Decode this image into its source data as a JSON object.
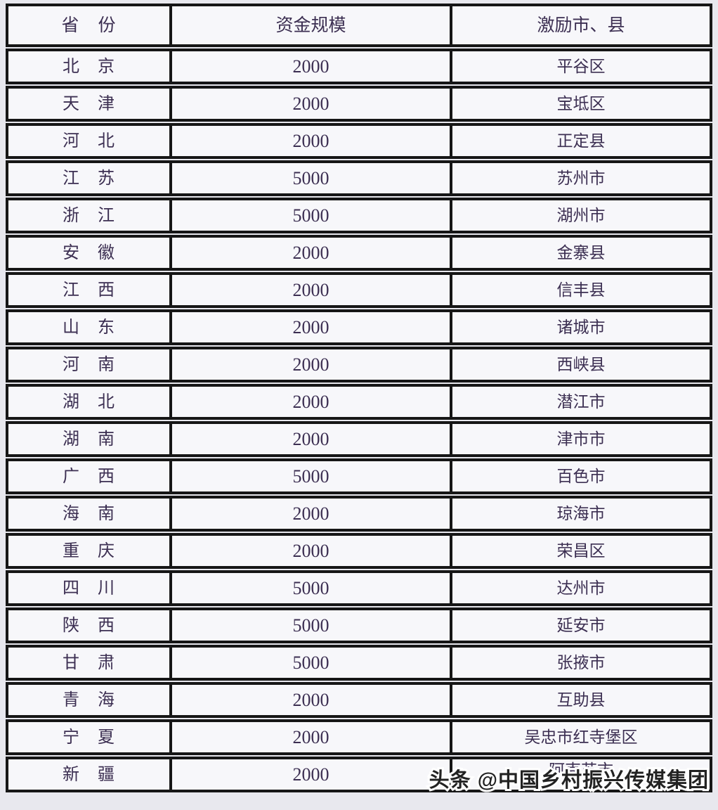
{
  "table": {
    "headers": {
      "province": "省　份",
      "fund": "资金规模",
      "city": "激励市、县"
    },
    "rows": [
      {
        "province": "北　京",
        "fund": "2000",
        "city": "平谷区"
      },
      {
        "province": "天　津",
        "fund": "2000",
        "city": "宝坻区"
      },
      {
        "province": "河　北",
        "fund": "2000",
        "city": "正定县"
      },
      {
        "province": "江　苏",
        "fund": "5000",
        "city": "苏州市"
      },
      {
        "province": "浙　江",
        "fund": "5000",
        "city": "湖州市"
      },
      {
        "province": "安　徽",
        "fund": "2000",
        "city": "金寨县"
      },
      {
        "province": "江　西",
        "fund": "2000",
        "city": "信丰县"
      },
      {
        "province": "山　东",
        "fund": "2000",
        "city": "诸城市"
      },
      {
        "province": "河　南",
        "fund": "2000",
        "city": "西峡县"
      },
      {
        "province": "湖　北",
        "fund": "2000",
        "city": "潜江市"
      },
      {
        "province": "湖　南",
        "fund": "2000",
        "city": "津市市"
      },
      {
        "province": "广　西",
        "fund": "5000",
        "city": "百色市"
      },
      {
        "province": "海　南",
        "fund": "2000",
        "city": "琼海市"
      },
      {
        "province": "重　庆",
        "fund": "2000",
        "city": "荣昌区"
      },
      {
        "province": "四　川",
        "fund": "5000",
        "city": "达州市"
      },
      {
        "province": "陕　西",
        "fund": "5000",
        "city": "延安市"
      },
      {
        "province": "甘　肃",
        "fund": "5000",
        "city": "张掖市"
      },
      {
        "province": "青　海",
        "fund": "2000",
        "city": "互助县"
      },
      {
        "province": "宁　夏",
        "fund": "2000",
        "city": "吴忠市红寺堡区"
      },
      {
        "province": "新　疆",
        "fund": "2000",
        "city": "阿克苏市"
      }
    ]
  },
  "watermark": {
    "text": "头条 @中国乡村振兴传媒集团"
  },
  "colors": {
    "text": "#3c2f52",
    "border": "#161616",
    "cell_background": "#f7f7fa",
    "page_background": "#e8e8ee",
    "watermark_fill": "#222222",
    "watermark_outline": "#ffffff"
  }
}
